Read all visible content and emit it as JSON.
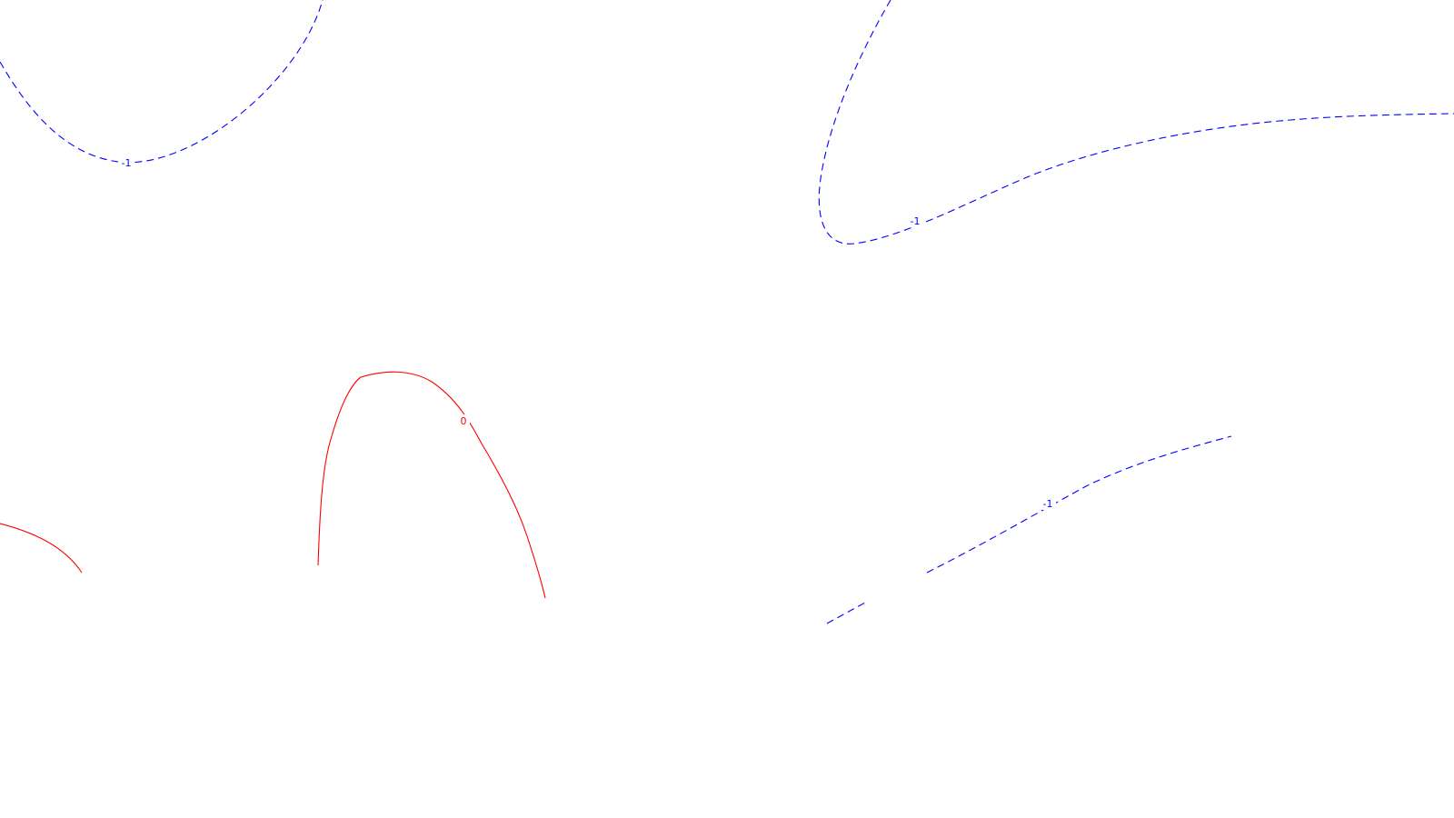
{
  "contour_plot": {
    "levels": [
      {
        "name": "negative-level",
        "value_label": "-1",
        "color": "#0000ff",
        "line_style": "dashed"
      },
      {
        "name": "zero-level",
        "value_label": "0",
        "color": "#ff0000",
        "line_style": "solid"
      }
    ],
    "labels": {
      "top_left_label": "-1",
      "top_right_label": "-1",
      "lower_right_label": "-1",
      "center_label": "0"
    }
  }
}
